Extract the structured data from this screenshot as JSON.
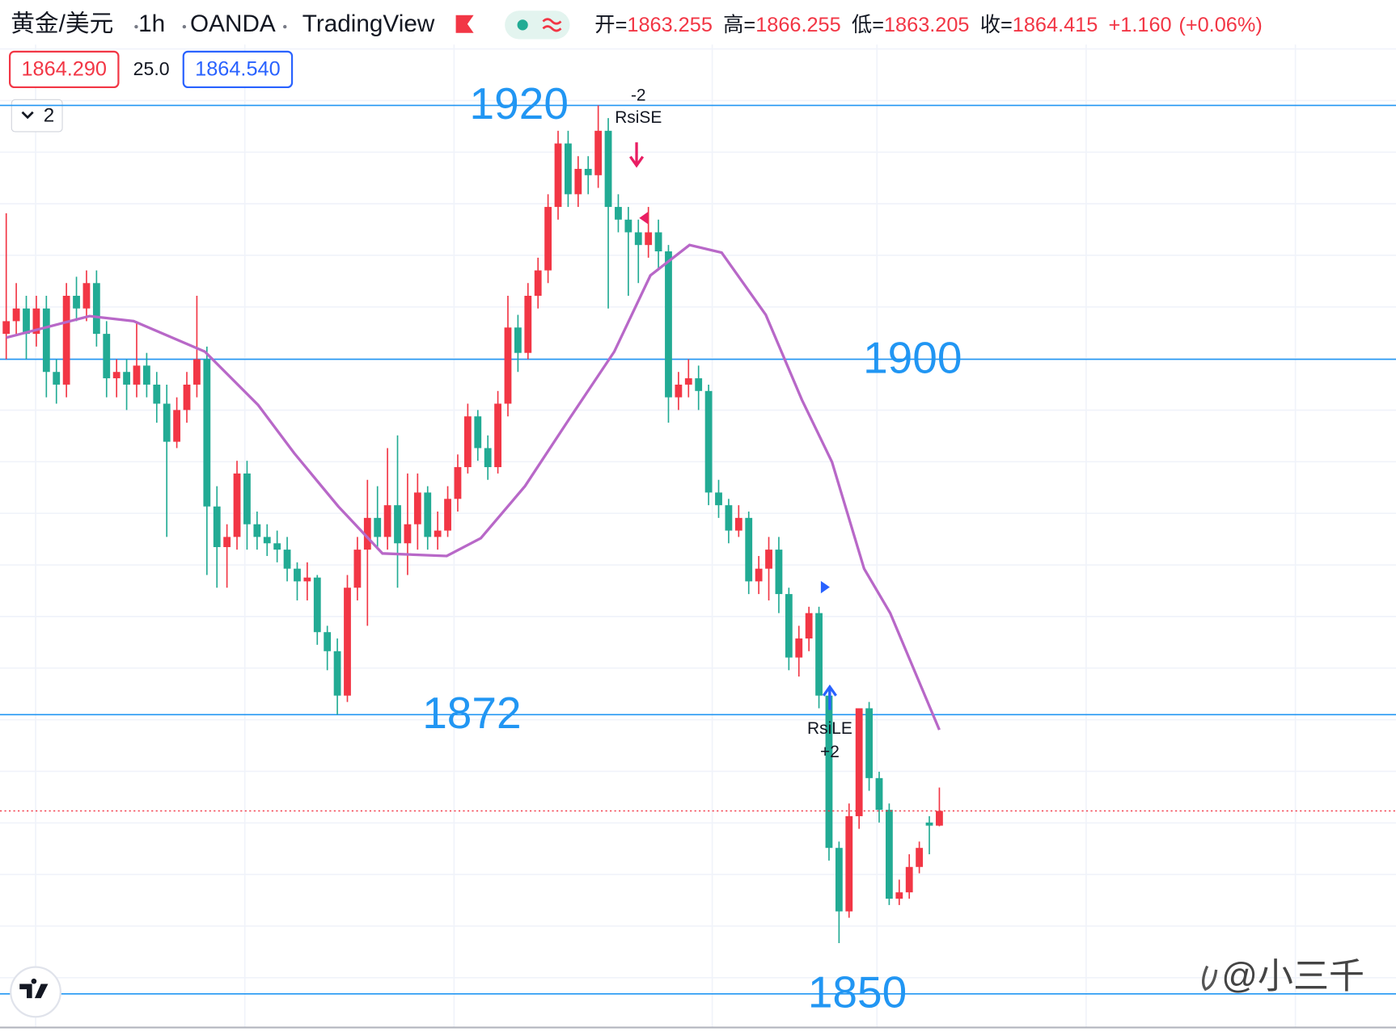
{
  "header": {
    "symbol": "黄金/美元",
    "interval": "1h",
    "exchange": "OANDA",
    "source": "TradingView",
    "open_label": "开=",
    "high_label": "高=",
    "low_label": "低=",
    "close_label": "收=",
    "change": "+1.160",
    "change_pct": "(+0.06%)",
    "bid": "1864.290",
    "spread": "25.0",
    "ask": "1864.540",
    "indicator_count": 2
  },
  "watermark": "@小三千",
  "chart_data": {
    "type": "candlestick",
    "up_color": "#f23645",
    "down_color": "#22ab94",
    "ylim": [
      1847.0,
      1928.3
    ],
    "levels": [
      1920,
      1900,
      1872,
      1850
    ],
    "level_color": "#2196f3",
    "candles": [
      [
        1902,
        1911.5,
        1900,
        1903
      ],
      [
        1903,
        1906,
        1902,
        1904
      ],
      [
        1904,
        1905,
        1900,
        1902
      ],
      [
        1902,
        1905,
        1901,
        1904
      ],
      [
        1904,
        1905,
        1897,
        1899
      ],
      [
        1899,
        1900,
        1896.5,
        1898
      ],
      [
        1898,
        1906,
        1897,
        1905
      ],
      [
        1905,
        1906.5,
        1903,
        1904
      ],
      [
        1904,
        1907,
        1903,
        1906
      ],
      [
        1906,
        1907,
        1901,
        1902
      ],
      [
        1902,
        1903,
        1897,
        1898.5
      ],
      [
        1898.5,
        1900,
        1897,
        1899
      ],
      [
        1899,
        1900,
        1896,
        1898
      ],
      [
        1898,
        1903,
        1897,
        1899.5
      ],
      [
        1899.5,
        1900.5,
        1897,
        1898
      ],
      [
        1898,
        1899,
        1895,
        1896.5
      ],
      [
        1896.5,
        1898,
        1886,
        1893.5
      ],
      [
        1893.5,
        1897,
        1893,
        1896
      ],
      [
        1896,
        1899,
        1895,
        1898
      ],
      [
        1898,
        1905,
        1897,
        1900
      ],
      [
        1900,
        1901,
        1883,
        1888.4
      ],
      [
        1888.4,
        1890,
        1882,
        1885.2
      ],
      [
        1885.2,
        1887,
        1882,
        1886
      ],
      [
        1886,
        1892,
        1885,
        1891
      ],
      [
        1891,
        1892,
        1885,
        1887
      ],
      [
        1887,
        1888,
        1885,
        1886
      ],
      [
        1886,
        1887,
        1884.5,
        1885.5
      ],
      [
        1885.5,
        1886.5,
        1884,
        1885
      ],
      [
        1885,
        1886,
        1882.5,
        1883.5
      ],
      [
        1883.5,
        1884,
        1881,
        1882.5
      ],
      [
        1882.5,
        1884,
        1881,
        1882.8
      ],
      [
        1882.8,
        1883,
        1877.5,
        1878.5
      ],
      [
        1878.5,
        1879,
        1875.5,
        1877
      ],
      [
        1877,
        1878,
        1872,
        1873.5
      ],
      [
        1873.5,
        1883,
        1873,
        1882
      ],
      [
        1882,
        1886,
        1881,
        1885
      ],
      [
        1885,
        1890.5,
        1879,
        1887.5
      ],
      [
        1887.5,
        1890,
        1885,
        1886
      ],
      [
        1886,
        1893,
        1885,
        1888.5
      ],
      [
        1888.5,
        1894,
        1882,
        1885.5
      ],
      [
        1885.5,
        1891,
        1883,
        1887
      ],
      [
        1887,
        1891,
        1885,
        1889.5
      ],
      [
        1889.5,
        1890,
        1885,
        1886
      ],
      [
        1886,
        1888,
        1885,
        1886.5
      ],
      [
        1886.5,
        1890,
        1886,
        1889
      ],
      [
        1889,
        1892.5,
        1888,
        1891.5
      ],
      [
        1891.5,
        1896.5,
        1891,
        1895.5
      ],
      [
        1895.5,
        1896,
        1892,
        1893
      ],
      [
        1893,
        1894,
        1890.5,
        1891.5
      ],
      [
        1891.5,
        1897.5,
        1891,
        1896.5
      ],
      [
        1896.5,
        1905,
        1895.5,
        1902.5
      ],
      [
        1902.5,
        1903.5,
        1899,
        1900.5
      ],
      [
        1900.5,
        1906,
        1900,
        1905
      ],
      [
        1905,
        1908,
        1904,
        1907
      ],
      [
        1907,
        1913,
        1906,
        1912
      ],
      [
        1912,
        1918,
        1911,
        1917
      ],
      [
        1917,
        1918,
        1912,
        1913
      ],
      [
        1913,
        1916,
        1912,
        1915
      ],
      [
        1915,
        1916,
        1913,
        1914.5
      ],
      [
        1914.5,
        1920,
        1913.5,
        1918
      ],
      [
        1918,
        1919,
        1904,
        1912
      ],
      [
        1912,
        1913,
        1910,
        1911
      ],
      [
        1911,
        1912,
        1905,
        1910
      ],
      [
        1910,
        1911,
        1906,
        1909
      ],
      [
        1909,
        1912,
        1908,
        1910
      ],
      [
        1910,
        1911,
        1907,
        1908.5
      ],
      [
        1908.5,
        1909,
        1895,
        1897
      ],
      [
        1897,
        1899,
        1896,
        1898
      ],
      [
        1898,
        1900,
        1897,
        1898.5
      ],
      [
        1898.5,
        1899.5,
        1896,
        1897.5
      ],
      [
        1897.5,
        1898,
        1888.5,
        1889.5
      ],
      [
        1889.5,
        1890.5,
        1887.5,
        1888.5
      ],
      [
        1888.5,
        1889,
        1885.5,
        1886.5
      ],
      [
        1886.5,
        1888.5,
        1886,
        1887.5
      ],
      [
        1887.5,
        1888,
        1881.5,
        1882.5
      ],
      [
        1882.5,
        1884.5,
        1881.5,
        1883.5
      ],
      [
        1883.5,
        1886,
        1881,
        1885
      ],
      [
        1885,
        1886,
        1880,
        1881.5
      ],
      [
        1881.5,
        1882,
        1875.5,
        1876.5
      ],
      [
        1876.5,
        1879,
        1875,
        1878
      ],
      [
        1878,
        1880.5,
        1877,
        1880
      ],
      [
        1880,
        1880.5,
        1872.5,
        1873.5
      ],
      [
        1873.5,
        1874,
        1860.5,
        1861.5
      ],
      [
        1861.5,
        1862,
        1854,
        1856.5
      ],
      [
        1856.5,
        1865,
        1856,
        1864
      ],
      [
        1864,
        1872.5,
        1863,
        1872.5
      ],
      [
        1872.5,
        1873,
        1866,
        1867
      ],
      [
        1867,
        1867.5,
        1863.5,
        1864.5
      ],
      [
        1864.5,
        1865,
        1857,
        1857.5
      ],
      [
        1857.5,
        1859,
        1857,
        1858
      ],
      [
        1858,
        1861,
        1857.5,
        1860
      ],
      [
        1860,
        1862,
        1859.5,
        1861.5
      ],
      [
        1863.5,
        1864,
        1861,
        1863.255
      ],
      [
        1863.255,
        1866.255,
        1863.205,
        1864.415
      ]
    ],
    "ma": {
      "color": "#b868c8",
      "x": [
        0,
        8.3,
        12.7,
        19.8,
        25.1,
        28.7,
        33.1,
        37.5,
        43.9,
        47.3,
        51.7,
        56.2,
        60.6,
        64.2,
        68.1,
        71.3,
        75.7,
        79.3,
        82.3,
        85.5,
        88.1,
        93
      ],
      "values": [
        1901.7,
        1903.4,
        1903,
        1900.6,
        1896.4,
        1892.6,
        1888.4,
        1884.7,
        1884.5,
        1885.9,
        1890,
        1895.4,
        1900.6,
        1906.6,
        1909,
        1908.4,
        1903.5,
        1896.8,
        1891.9,
        1883.5,
        1880,
        1870.8
      ]
    },
    "signals": [
      {
        "label": "RsiSE",
        "qty": -2
      },
      {
        "label": "RsiLE",
        "qty": "+2"
      }
    ]
  }
}
